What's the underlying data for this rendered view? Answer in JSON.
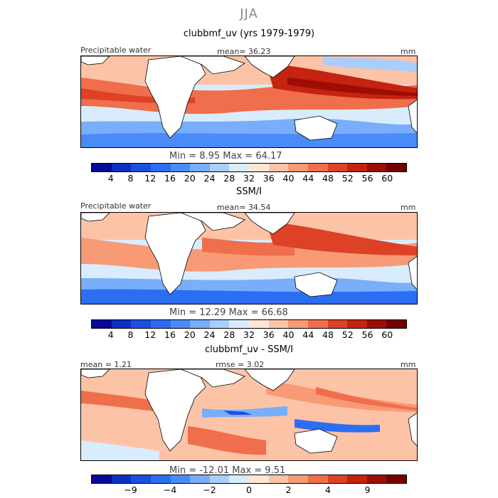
{
  "figure": {
    "season": "JJA",
    "units": "mm"
  },
  "panels": [
    {
      "title": "clubbmf_uv (yrs 1979-1979)",
      "label": "Precipitable water",
      "stat": "mean=  36.23",
      "units": "mm",
      "minmax": "Min =    8.95  Max =   64.17",
      "colorbar": {
        "colors": [
          "#08089a",
          "#0f2fc4",
          "#1a4fe0",
          "#2c6ef2",
          "#4a8cf7",
          "#78aefb",
          "#a9cdfd",
          "#d9ecfe",
          "#ffe6d4",
          "#fdc3a6",
          "#f89a76",
          "#ef6e4c",
          "#dd4226",
          "#c42310",
          "#9e0d04",
          "#730000"
        ],
        "tick_labels": [
          "4",
          "8",
          "12",
          "16",
          "20",
          "24",
          "28",
          "32",
          "36",
          "40",
          "44",
          "48",
          "52",
          "56",
          "60"
        ]
      }
    },
    {
      "title": "SSM/I",
      "label": "Precipitable water",
      "stat": "mean=  34.54",
      "units": "mm",
      "minmax": "Min =   12.29  Max =   66.68",
      "colorbar": {
        "colors": [
          "#08089a",
          "#0f2fc4",
          "#1a4fe0",
          "#2c6ef2",
          "#4a8cf7",
          "#78aefb",
          "#a9cdfd",
          "#d9ecfe",
          "#ffe6d4",
          "#fdc3a6",
          "#f89a76",
          "#ef6e4c",
          "#dd4226",
          "#c42310",
          "#9e0d04",
          "#730000"
        ],
        "tick_labels": [
          "4",
          "8",
          "12",
          "16",
          "20",
          "24",
          "28",
          "32",
          "36",
          "40",
          "44",
          "48",
          "52",
          "56",
          "60"
        ]
      }
    },
    {
      "title": "clubbmf_uv - SSM/I",
      "label_left": "mean =    1.21",
      "stat": "rmse =    3.02",
      "units": "mm",
      "minmax": "Min = -12.01  Max =    9.51",
      "colorbar": {
        "colors": [
          "#08089a",
          "#0f2fc4",
          "#1a4fe0",
          "#2c6ef2",
          "#4a8cf7",
          "#78aefb",
          "#a9cdfd",
          "#d9ecfe",
          "#ffe6d4",
          "#fdc3a6",
          "#f89a76",
          "#ef6e4c",
          "#dd4226",
          "#c42310",
          "#9e0d04",
          "#730000"
        ],
        "tick_labels": [
          "-9",
          "-4",
          "-2",
          "0",
          "2",
          "4",
          "9"
        ]
      }
    }
  ],
  "chart_data": [
    {
      "type": "heatmap",
      "title": "clubbmf_uv (yrs 1979-1979)",
      "variable": "Precipitable water",
      "units": "mm",
      "mean": 36.23,
      "min": 8.95,
      "max": 64.17,
      "contour_levels": [
        4,
        8,
        12,
        16,
        20,
        24,
        28,
        32,
        36,
        40,
        44,
        48,
        52,
        56,
        60
      ]
    },
    {
      "type": "heatmap",
      "title": "SSM/I",
      "variable": "Precipitable water",
      "units": "mm",
      "mean": 34.54,
      "min": 12.29,
      "max": 66.68,
      "contour_levels": [
        4,
        8,
        12,
        16,
        20,
        24,
        28,
        32,
        36,
        40,
        44,
        48,
        52,
        56,
        60
      ]
    },
    {
      "type": "heatmap",
      "title": "clubbmf_uv - SSM/I",
      "units": "mm",
      "mean": 1.21,
      "rmse": 3.02,
      "min": -12.01,
      "max": 9.51,
      "contour_levels": [
        -9,
        -4,
        -2,
        0,
        2,
        4,
        9
      ]
    }
  ]
}
